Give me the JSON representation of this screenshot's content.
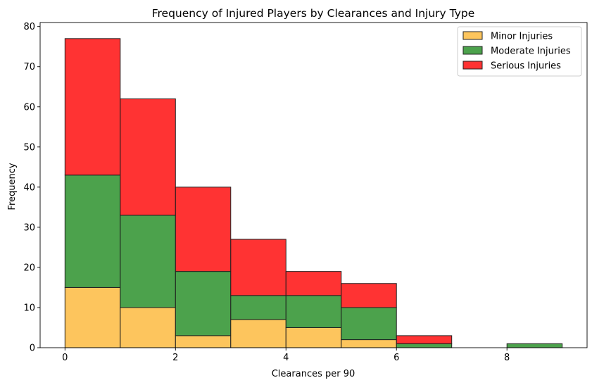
{
  "chart_data": {
    "type": "bar",
    "stacked": true,
    "title": "Frequency of Injured Players by Clearances and Injury Type",
    "xlabel": "Clearances per 90",
    "ylabel": "Frequency",
    "bin_edges": [
      0,
      1,
      2,
      3,
      4,
      5,
      6,
      7,
      8,
      9
    ],
    "xlim": [
      -0.45,
      9.45
    ],
    "ylim": [
      0,
      81
    ],
    "xticks": [
      0,
      2,
      4,
      6,
      8
    ],
    "yticks": [
      0,
      10,
      20,
      30,
      40,
      50,
      60,
      70,
      80
    ],
    "grid": false,
    "legend_position": "top-right",
    "series": [
      {
        "name": "Minor Injuries",
        "color": "#fdb734",
        "values": [
          15,
          10,
          3,
          7,
          5,
          2,
          0,
          0,
          0
        ]
      },
      {
        "name": "Moderate Injuries",
        "color": "#1f8b1f",
        "values": [
          28,
          23,
          16,
          6,
          8,
          8,
          1,
          0,
          1
        ]
      },
      {
        "name": "Serious Injuries",
        "color": "#ff0000",
        "values": [
          34,
          29,
          21,
          14,
          6,
          6,
          2,
          0,
          0
        ]
      }
    ]
  }
}
